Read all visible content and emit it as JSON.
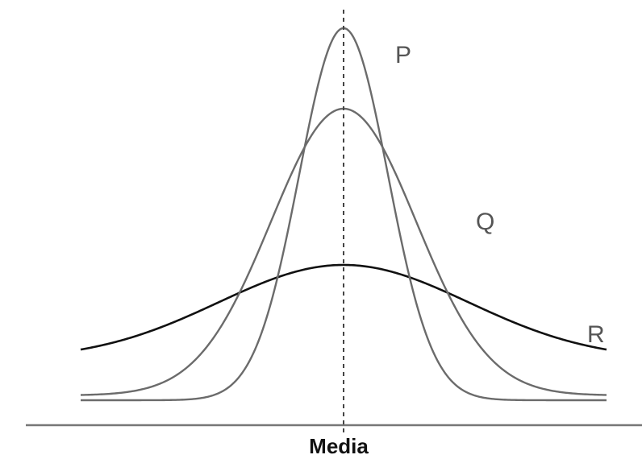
{
  "curves": [
    {
      "id": "P",
      "label": "P",
      "color": "#6b6b6b"
    },
    {
      "id": "Q",
      "label": "Q",
      "color": "#6b6b6b"
    },
    {
      "id": "R",
      "label": "R",
      "color": "#111111"
    }
  ],
  "axis": {
    "label": "Media",
    "line_color": "#777777"
  },
  "median_line_color": "#444444"
}
